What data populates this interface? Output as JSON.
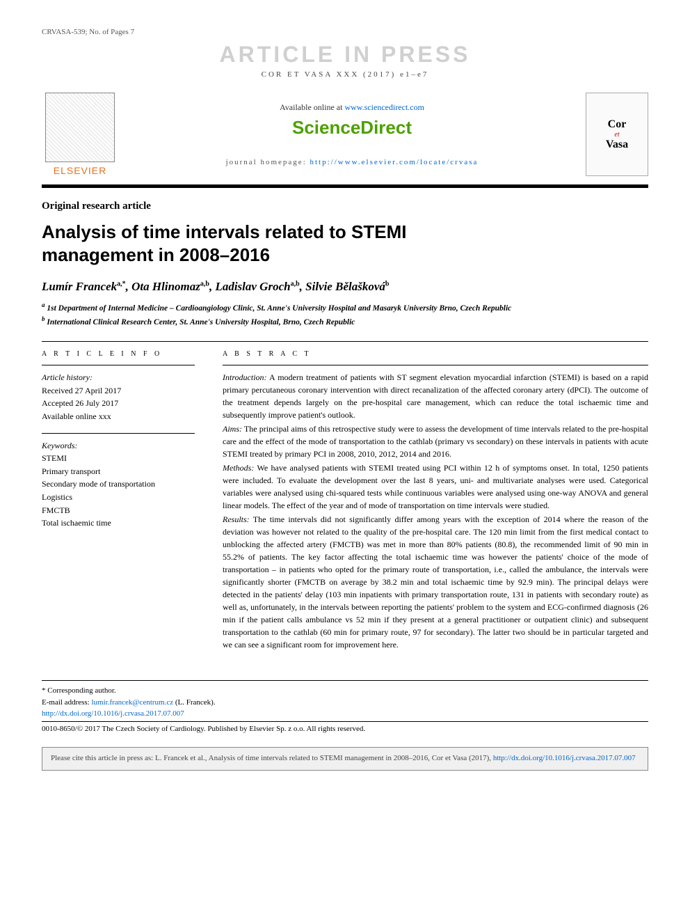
{
  "header": {
    "left": "CRVASA-539; No. of Pages 7",
    "watermark": "ARTICLE IN PRESS",
    "journal_ref": "COR ET VASA XXX (2017) e1–e7"
  },
  "masthead": {
    "elsevier": "ELSEVIER",
    "available_prefix": "Available online at ",
    "available_link": "www.sciencedirect.com",
    "sciencedirect": "ScienceDirect",
    "homepage_prefix": "journal homepage: ",
    "homepage_link": "http://www.elsevier.com/locate/crvasa",
    "cover": {
      "cor": "Cor",
      "et": "et",
      "vasa": "Vasa"
    }
  },
  "article": {
    "type": "Original research article",
    "title": "Analysis of time intervals related to STEMI management in 2008–2016",
    "authors_html": "Lumír Francek",
    "authors": [
      {
        "name": "Lumír Francek",
        "marks": "a,*"
      },
      {
        "name": "Ota Hlinomaz",
        "marks": "a,b"
      },
      {
        "name": "Ladislav Groch",
        "marks": "a,b"
      },
      {
        "name": "Silvie Bělašková",
        "marks": "b"
      }
    ],
    "affiliations": [
      {
        "mark": "a",
        "text": "1st Department of Internal Medicine – Cardioangiology Clinic, St. Anne's University Hospital and Masaryk University Brno, Czech Republic"
      },
      {
        "mark": "b",
        "text": "International Clinical Research Center, St. Anne's University Hospital, Brno, Czech Republic"
      }
    ]
  },
  "info": {
    "heading": "A R T I C L E  I N F O",
    "history_label": "Article history:",
    "history": [
      "Received 27 April 2017",
      "Accepted 26 July 2017",
      "Available online xxx"
    ],
    "keywords_label": "Keywords:",
    "keywords": [
      "STEMI",
      "Primary transport",
      "Secondary mode of transportation",
      "Logistics",
      "FMCTB",
      "Total ischaemic time"
    ]
  },
  "abstract": {
    "heading": "A B S T R A C T",
    "sections": [
      {
        "label": "Introduction:",
        "text": "A modern treatment of patients with ST segment elevation myocardial infarction (STEMI) is based on a rapid primary percutaneous coronary intervention with direct recanalization of the affected coronary artery (dPCI). The outcome of the treatment depends largely on the pre-hospital care management, which can reduce the total ischaemic time and subsequently improve patient's outlook."
      },
      {
        "label": "Aims:",
        "text": "The principal aims of this retrospective study were to assess the development of time intervals related to the pre-hospital care and the effect of the mode of transportation to the cathlab (primary vs secondary) on these intervals in patients with acute STEMI treated by primary PCI in 2008, 2010, 2012, 2014 and 2016."
      },
      {
        "label": "Methods:",
        "text": "We have analysed patients with STEMI treated using PCI within 12 h of symptoms onset. In total, 1250 patients were included. To evaluate the development over the last 8 years, uni- and multivariate analyses were used. Categorical variables were analysed using chi-squared tests while continuous variables were analysed using one-way ANOVA and general linear models. The effect of the year and of mode of transportation on time intervals were studied."
      },
      {
        "label": "Results:",
        "text": "The time intervals did not significantly differ among years with the exception of 2014 where the reason of the deviation was however not related to the quality of the pre-hospital care. The 120 min limit from the first medical contact to unblocking the affected artery (FMCTB) was met in more than 80% patients (80.8), the recommended limit of 90 min in 55.2% of patients. The key factor affecting the total ischaemic time was however the patients' choice of the mode of transportation – in patients who opted for the primary route of transportation, i.e., called the ambulance, the intervals were significantly shorter (FMCTB on average by 38.2 min and total ischaemic time by 92.9 min). The principal delays were detected in the patients' delay (103 min inpatients with primary transportation route, 131 in patients with secondary route) as well as, unfortunately, in the intervals between reporting the patients' problem to the system and ECG-confirmed diagnosis (26 min if the patient calls ambulance vs 52 min if they present at a general practitioner or outpatient clinic) and subsequent transportation to the cathlab (60 min for primary route, 97 for secondary). The latter two should be in particular targeted and we can see a significant room for improvement here."
      }
    ]
  },
  "footnotes": {
    "corresponding": "* Corresponding author.",
    "email_label": "E-mail address: ",
    "email": "lumir.francek@centrum.cz",
    "email_author": " (L. Francek).",
    "doi": "http://dx.doi.org/10.1016/j.crvasa.2017.07.007",
    "copyright": "0010-8650/© 2017 The Czech Society of Cardiology. Published by Elsevier Sp. z o.o. All rights reserved."
  },
  "citebox": {
    "text_prefix": "Please cite this article in press as: L. Francek et al., Analysis of time intervals related to STEMI management in 2008–2016, Cor et Vasa (2017), ",
    "link": "http://dx.doi.org/10.1016/j.crvasa.2017.07.007"
  },
  "colors": {
    "elsevier_orange": "#e9711c",
    "sciencedirect_green": "#4da000",
    "link_blue": "#0066cc",
    "watermark_gray": "#d0d0d0"
  }
}
